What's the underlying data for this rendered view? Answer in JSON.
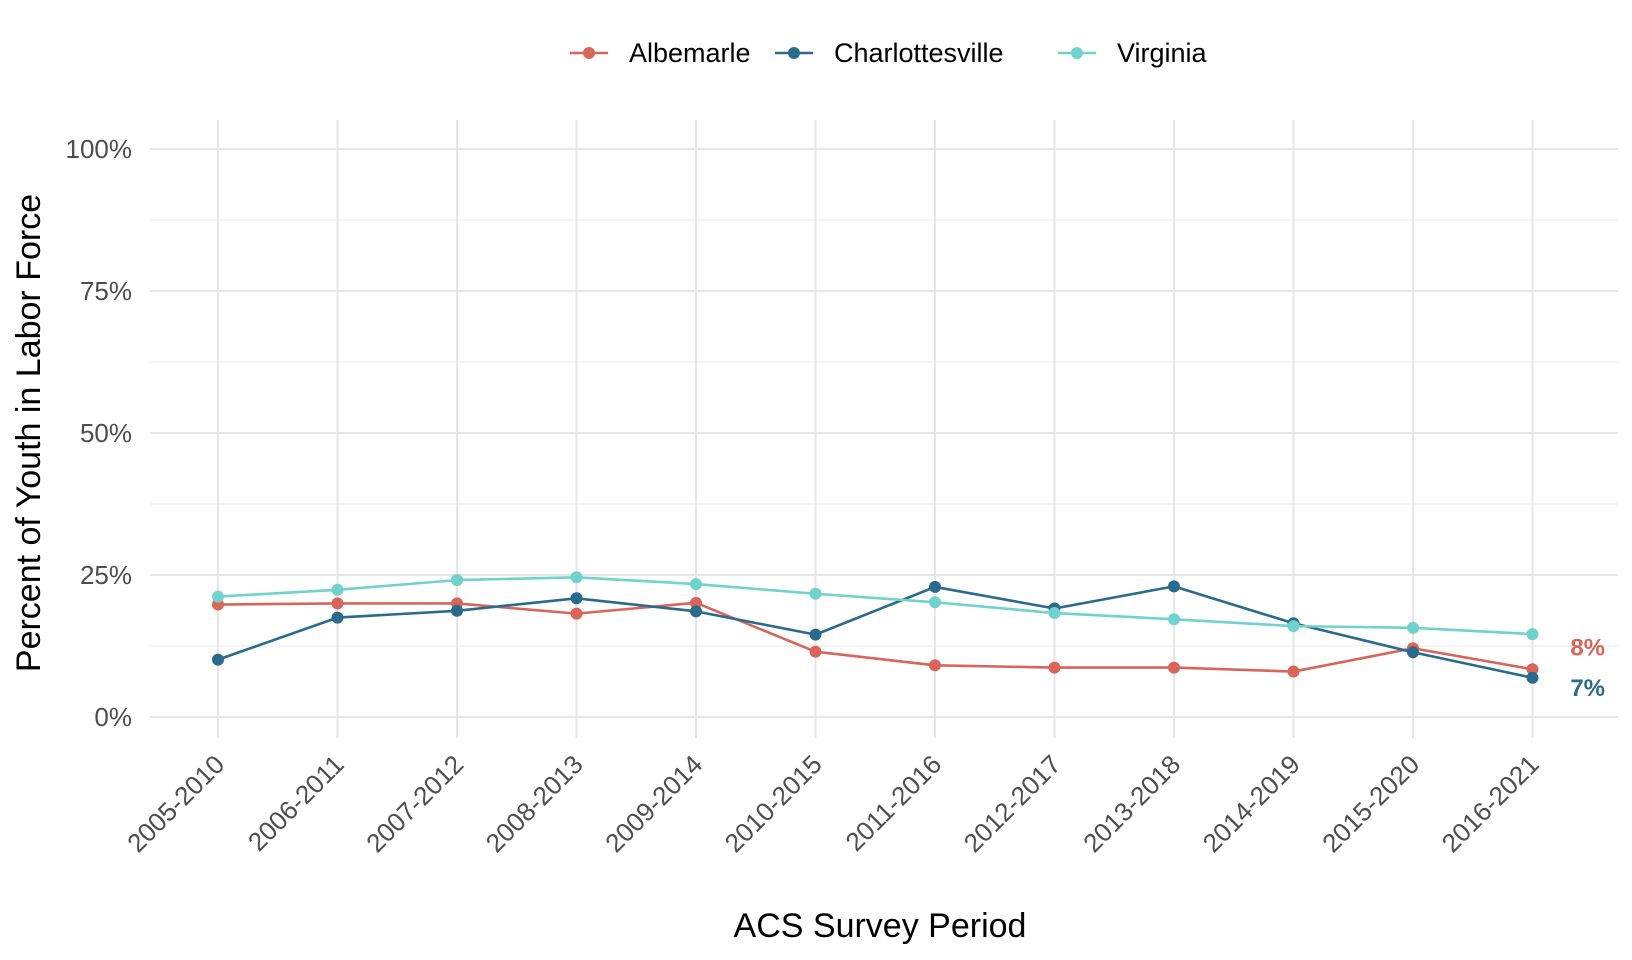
{
  "chart_data": {
    "type": "line",
    "xlabel": "ACS Survey Period",
    "ylabel": "Percent of Youth in Labor Force",
    "ylim": [
      0,
      100
    ],
    "y_ticks": [
      "0%",
      "25%",
      "50%",
      "75%",
      "100%"
    ],
    "grid": true,
    "legend_position": "top",
    "categories": [
      "2005-2010",
      "2006-2011",
      "2007-2012",
      "2008-2013",
      "2009-2014",
      "2010-2015",
      "2011-2016",
      "2012-2017",
      "2013-2018",
      "2014-2019",
      "2015-2020",
      "2016-2021"
    ],
    "series": [
      {
        "name": "Albemarle",
        "color": "#d9655a",
        "values": [
          19.8,
          20.0,
          20.0,
          18.2,
          20.1,
          11.5,
          9.1,
          8.7,
          8.7,
          8.0,
          12.1,
          8.4
        ],
        "end_label": "8%"
      },
      {
        "name": "Charlottesville",
        "color": "#2a6a8c",
        "values": [
          10.1,
          17.5,
          18.7,
          20.9,
          18.6,
          14.5,
          22.9,
          19.1,
          23.0,
          16.5,
          11.4,
          6.9
        ],
        "end_label": "7%"
      },
      {
        "name": "Virginia",
        "color": "#70d2cc",
        "values": [
          21.2,
          22.4,
          24.1,
          24.6,
          23.4,
          21.7,
          20.2,
          18.3,
          17.2,
          16.0,
          15.7,
          14.6
        ],
        "end_label": ""
      }
    ]
  }
}
